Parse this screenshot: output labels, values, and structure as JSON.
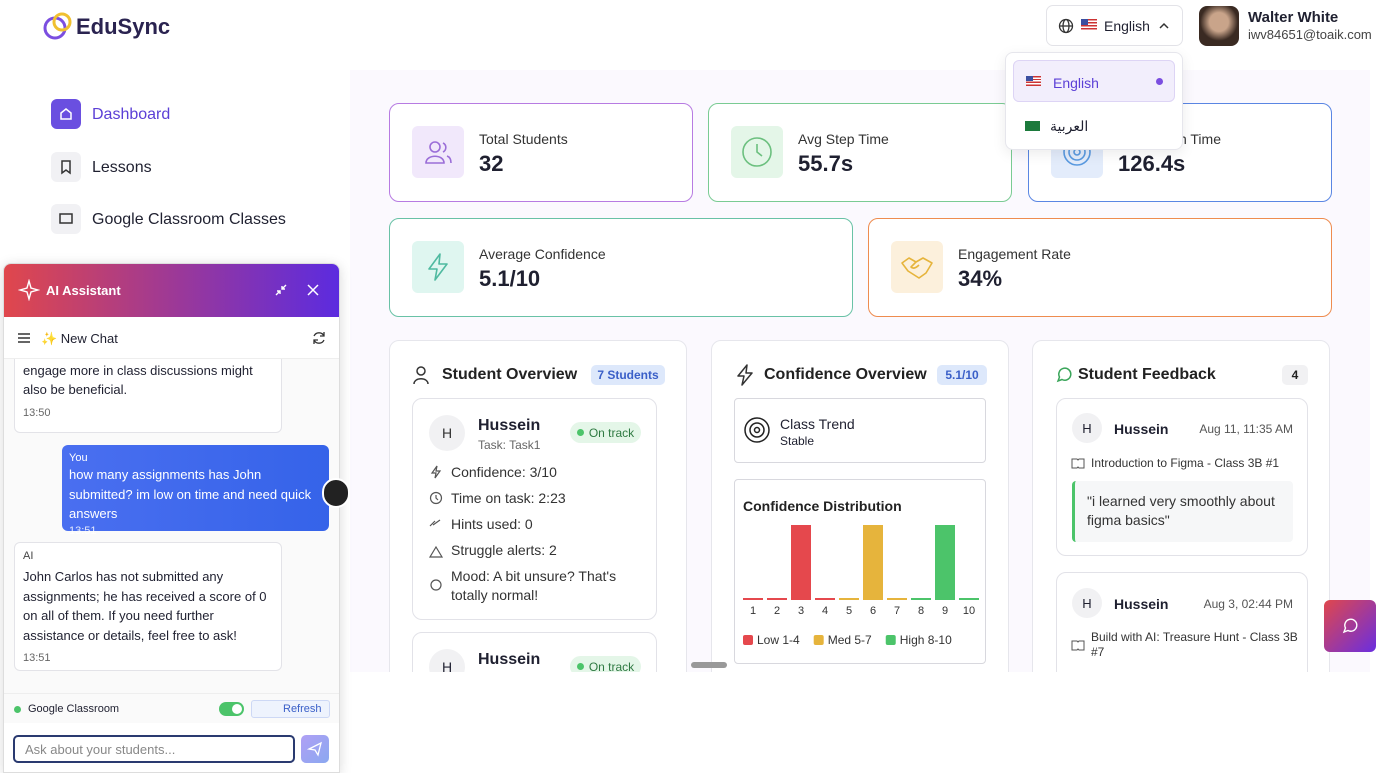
{
  "brand": "EduSync",
  "language": {
    "current": "English",
    "options": [
      "English",
      "العربية"
    ]
  },
  "user": {
    "name": "Walter White",
    "email": "iwv84651@toaik.com"
  },
  "nav": [
    "Dashboard",
    "Lessons",
    "Google Classroom Classes"
  ],
  "stats": [
    {
      "label": "Total Students",
      "value": "32"
    },
    {
      "label": "Avg Step Time",
      "value": "55.7s"
    },
    {
      "label": "on Time",
      "value": "126.4s"
    },
    {
      "label": "Average Confidence",
      "value": "5.1/10"
    },
    {
      "label": "Engagement Rate",
      "value": "34%"
    }
  ],
  "student_overview": {
    "title": "Student Overview",
    "badge": "7 Students",
    "students": [
      {
        "name": "Hussein",
        "task": "Task: Task1",
        "status": "On track",
        "details": [
          "Confidence: 3/10",
          "Time on task: 2:23",
          "Hints used: 0",
          "Struggle alerts: 2",
          "Mood: A bit unsure? That's totally normal!"
        ]
      },
      {
        "name": "Hussein",
        "status": "On track"
      }
    ]
  },
  "confidence_overview": {
    "title": "Confidence Overview",
    "badge": "5.1/10",
    "trend_label": "Class Trend",
    "trend": "Stable",
    "distribution": {
      "title": "Confidence Distribution",
      "categories": [
        "1",
        "2",
        "3",
        "4",
        "5",
        "6",
        "7",
        "8",
        "9",
        "10"
      ],
      "values": [
        0,
        0,
        1,
        0,
        0,
        1,
        0,
        0,
        1,
        0
      ],
      "colors": [
        "#e5484d",
        "#e5484d",
        "#e5484d",
        "#e5484d",
        "#e6b43c",
        "#e6b43c",
        "#e6b43c",
        "#4cc46a",
        "#4cc46a",
        "#4cc46a"
      ],
      "legend": [
        {
          "name": "Low 1-4",
          "color": "#e5484d"
        },
        {
          "name": "Med 5-7",
          "color": "#e6b43c"
        },
        {
          "name": "High 8-10",
          "color": "#4cc46a"
        }
      ]
    }
  },
  "feedback": {
    "title": "Student Feedback",
    "count": "4",
    "items": [
      {
        "name": "Hussein",
        "date": "Aug 11, 11:35 AM",
        "lesson": "Introduction to Figma - Class 3B #1",
        "quote": "\"i learned very smoothly about figma basics\""
      },
      {
        "name": "Hussein",
        "date": "Aug 3, 02:44 PM",
        "lesson": "Build with AI: Treasure Hunt - Class 3B #7"
      }
    ]
  },
  "chat": {
    "title": "AI Assistant",
    "new_chat": "✨ New Chat",
    "messages": [
      {
        "text": "up. Encouraging him to ask questions and engage more in class discussions might also be beneficial.",
        "time": "13:50"
      },
      {
        "sender": "You",
        "text": "how many assignments has John submitted? im low on time and need quick answers",
        "time": "13:51"
      },
      {
        "sender": "AI",
        "text": "John Carlos has not submitted any assignments; he has received a score of 0 on all of them. If you need further assistance or details, feel free to ask!",
        "time": "13:51"
      }
    ],
    "source": "Google Classroom",
    "refresh": "Refresh",
    "placeholder": "Ask about your students..."
  }
}
